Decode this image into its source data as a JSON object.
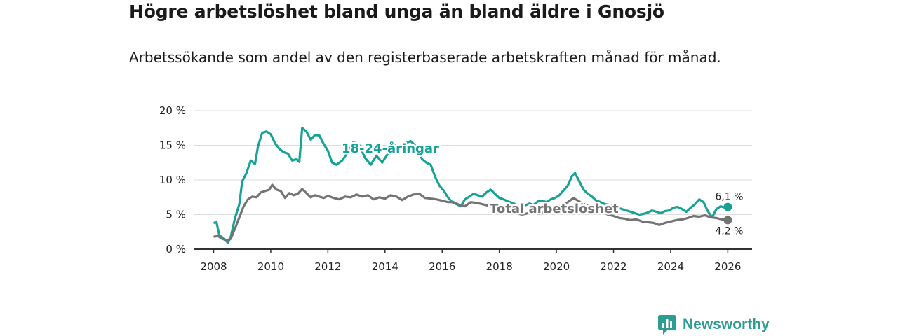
{
  "title": "Högre arbetslöshet bland unga än bland äldre i Gnosjö",
  "subtitle": "Arbetssökande som andel av den registerbaserade arbetskraften månad för månad.",
  "brand": {
    "name": "Newsworthy",
    "icon": "newsworthy-logo-icon"
  },
  "colors": {
    "youth": "#17a296",
    "total": "#747474",
    "grid": "#dddddd",
    "axis": "#333333"
  },
  "chart_data": {
    "type": "line",
    "title": "Högre arbetslöshet bland unga än bland äldre i Gnosjö",
    "xlabel": "",
    "ylabel": "",
    "xlim": [
      2007.3,
      2026.85
    ],
    "ylim": [
      0,
      20
    ],
    "yticks": [
      0,
      5,
      10,
      15,
      20
    ],
    "ytick_labels": [
      "0 %",
      "5 %",
      "10 %",
      "15 %",
      "20 %"
    ],
    "xticks": [
      2008,
      2010,
      2012,
      2014,
      2016,
      2018,
      2020,
      2022,
      2024,
      2026
    ],
    "xtick_labels": [
      "2008",
      "2010",
      "2012",
      "2014",
      "2016",
      "2018",
      "2020",
      "2022",
      "2024",
      "2026"
    ],
    "grid": true,
    "series": [
      {
        "name": "18-24-åringar",
        "label": "18-24-åringar",
        "end_label": "6,1 %",
        "x": [
          2008.0,
          2008.1,
          2008.2,
          2008.35,
          2008.5,
          2008.6,
          2008.75,
          2008.9,
          2009.0,
          2009.15,
          2009.3,
          2009.45,
          2009.55,
          2009.7,
          2009.85,
          2010.0,
          2010.15,
          2010.3,
          2010.45,
          2010.6,
          2010.75,
          2010.9,
          2011.0,
          2011.1,
          2011.25,
          2011.4,
          2011.55,
          2011.7,
          2011.85,
          2012.0,
          2012.15,
          2012.3,
          2012.5,
          2012.7,
          2012.9,
          2013.1,
          2013.3,
          2013.5,
          2013.7,
          2013.9,
          2014.1,
          2014.3,
          2014.5,
          2014.7,
          2014.9,
          2015.1,
          2015.3,
          2015.45,
          2015.6,
          2015.75,
          2015.9,
          2016.05,
          2016.2,
          2016.35,
          2016.5,
          2016.65,
          2016.8,
          2016.95,
          2017.1,
          2017.25,
          2017.4,
          2017.55,
          2017.7,
          2017.85,
          2018.0,
          2018.15,
          2018.3,
          2018.45,
          2018.6,
          2018.75,
          2018.9,
          2019.05,
          2019.2,
          2019.35,
          2019.5,
          2019.65,
          2019.8,
          2019.95,
          2020.1,
          2020.25,
          2020.4,
          2020.55,
          2020.65,
          2020.8,
          2020.95,
          2021.1,
          2021.25,
          2021.4,
          2021.55,
          2021.7,
          2021.85,
          2022.0,
          2022.15,
          2022.3,
          2022.45,
          2022.6,
          2022.75,
          2022.9,
          2023.05,
          2023.2,
          2023.35,
          2023.5,
          2023.65,
          2023.8,
          2023.95,
          2024.1,
          2024.25,
          2024.4,
          2024.55,
          2024.7,
          2024.85,
          2025.0,
          2025.15,
          2025.3,
          2025.45,
          2025.6,
          2025.75,
          2025.9,
          2026.0
        ],
        "values": [
          3.8,
          3.9,
          2.0,
          1.6,
          0.9,
          1.8,
          4.5,
          6.5,
          9.8,
          11.0,
          12.8,
          12.3,
          14.8,
          16.8,
          17.0,
          16.6,
          15.3,
          14.5,
          14.0,
          13.8,
          12.8,
          13.0,
          12.6,
          17.5,
          17.0,
          15.8,
          16.5,
          16.4,
          15.2,
          14.2,
          12.5,
          12.2,
          12.8,
          14.0,
          15.5,
          15.0,
          13.2,
          12.2,
          13.5,
          12.5,
          13.8,
          15.2,
          14.6,
          15.3,
          15.6,
          14.8,
          13.0,
          12.5,
          12.2,
          10.5,
          9.2,
          8.5,
          7.5,
          6.8,
          6.5,
          6.2,
          7.2,
          7.6,
          8.0,
          7.8,
          7.6,
          8.2,
          8.6,
          8.0,
          7.4,
          7.2,
          6.9,
          6.7,
          6.4,
          6.1,
          6.3,
          6.6,
          6.4,
          6.9,
          7.0,
          6.8,
          7.2,
          7.4,
          7.8,
          8.5,
          9.2,
          10.6,
          11.0,
          9.8,
          8.6,
          8.0,
          7.6,
          7.0,
          6.8,
          6.5,
          6.4,
          6.2,
          6.0,
          5.8,
          5.6,
          5.4,
          5.2,
          5.0,
          5.1,
          5.3,
          5.6,
          5.4,
          5.2,
          5.5,
          5.6,
          6.0,
          6.1,
          5.8,
          5.4,
          6.0,
          6.5,
          7.2,
          6.8,
          5.5,
          4.6,
          5.8,
          6.2,
          6.0,
          6.1
        ]
      },
      {
        "name": "Total arbetslöshet",
        "label": "Total arbetslöshet",
        "end_label": "4,2 %",
        "x": [
          2008.0,
          2008.15,
          2008.3,
          2008.45,
          2008.6,
          2008.75,
          2008.9,
          2009.05,
          2009.2,
          2009.35,
          2009.5,
          2009.65,
          2009.8,
          2009.95,
          2010.05,
          2010.2,
          2010.35,
          2010.5,
          2010.65,
          2010.8,
          2010.95,
          2011.1,
          2011.25,
          2011.4,
          2011.55,
          2011.7,
          2011.85,
          2012.0,
          2012.2,
          2012.4,
          2012.6,
          2012.8,
          2013.0,
          2013.2,
          2013.4,
          2013.6,
          2013.8,
          2014.0,
          2014.2,
          2014.4,
          2014.6,
          2014.8,
          2015.0,
          2015.2,
          2015.4,
          2015.6,
          2015.8,
          2016.0,
          2016.2,
          2016.4,
          2016.6,
          2016.8,
          2017.0,
          2017.2,
          2017.4,
          2017.6,
          2017.8,
          2018.0,
          2018.2,
          2018.4,
          2018.6,
          2018.8,
          2019.0,
          2019.2,
          2019.4,
          2019.6,
          2019.8,
          2020.0,
          2020.2,
          2020.4,
          2020.6,
          2020.8,
          2021.0,
          2021.2,
          2021.4,
          2021.6,
          2021.8,
          2022.0,
          2022.2,
          2022.4,
          2022.6,
          2022.8,
          2023.0,
          2023.2,
          2023.4,
          2023.6,
          2023.8,
          2024.0,
          2024.2,
          2024.4,
          2024.6,
          2024.8,
          2025.0,
          2025.2,
          2025.4,
          2025.6,
          2025.8,
          2026.0
        ],
        "values": [
          1.8,
          1.9,
          1.5,
          1.3,
          1.5,
          3.0,
          4.6,
          6.2,
          7.2,
          7.6,
          7.5,
          8.2,
          8.4,
          8.6,
          9.3,
          8.6,
          8.4,
          7.4,
          8.1,
          7.8,
          8.0,
          8.7,
          8.1,
          7.5,
          7.8,
          7.6,
          7.4,
          7.7,
          7.4,
          7.2,
          7.6,
          7.5,
          7.9,
          7.6,
          7.8,
          7.2,
          7.5,
          7.3,
          7.8,
          7.6,
          7.1,
          7.6,
          7.9,
          8.0,
          7.4,
          7.3,
          7.2,
          7.0,
          6.8,
          6.8,
          6.4,
          6.2,
          6.8,
          6.7,
          6.5,
          6.3,
          6.1,
          6.0,
          5.8,
          5.6,
          5.2,
          5.0,
          5.2,
          5.4,
          5.1,
          5.5,
          5.7,
          6.1,
          6.4,
          6.8,
          7.4,
          6.9,
          6.5,
          6.2,
          5.9,
          5.5,
          5.0,
          4.8,
          4.5,
          4.4,
          4.2,
          4.3,
          4.0,
          3.9,
          3.8,
          3.5,
          3.8,
          4.0,
          4.2,
          4.3,
          4.5,
          4.8,
          4.7,
          4.9,
          4.6,
          4.5,
          4.3,
          4.2
        ]
      }
    ]
  }
}
